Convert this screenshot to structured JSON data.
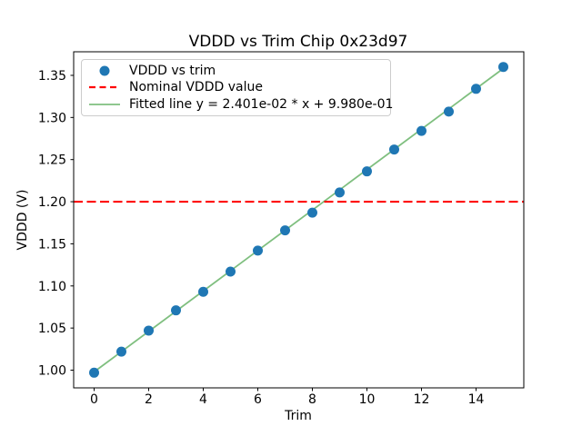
{
  "figure": {
    "title": "VDDD vs Trim Chip 0x23d97"
  },
  "axes": {
    "xlabel": "Trim",
    "ylabel": "VDDD (V)"
  },
  "legend": {
    "items": [
      {
        "label": "VDDD vs trim",
        "marker": "dot"
      },
      {
        "label": "Nominal VDDD value",
        "marker": "dashed-line"
      },
      {
        "label": "Fitted line y = 2.401e-02 * x + 9.980e-01",
        "marker": "solid-line"
      }
    ]
  },
  "chart_data": {
    "type": "scatter",
    "title": "VDDD vs Trim Chip 0x23d97",
    "xlabel": "Trim",
    "ylabel": "VDDD (V)",
    "xlim": [
      -0.75,
      15.75
    ],
    "ylim": [
      0.979,
      1.378
    ],
    "xticks": [
      0,
      2,
      4,
      6,
      8,
      10,
      12,
      14
    ],
    "xticklabels": [
      "0",
      "2",
      "4",
      "6",
      "8",
      "10",
      "12",
      "14"
    ],
    "yticks": [
      1.0,
      1.05,
      1.1,
      1.15,
      1.2,
      1.25,
      1.3,
      1.35
    ],
    "yticklabels": [
      "1.00",
      "1.05",
      "1.10",
      "1.15",
      "1.20",
      "1.25",
      "1.30",
      "1.35"
    ],
    "grid": false,
    "legend_position": "upper left",
    "scatter": {
      "name": "VDDD vs trim",
      "color": "#1f77b4",
      "x": [
        0,
        1,
        2,
        3,
        4,
        5,
        6,
        7,
        8,
        9,
        10,
        11,
        12,
        13,
        14,
        15
      ],
      "y": [
        0.997,
        1.022,
        1.047,
        1.071,
        1.093,
        1.117,
        1.142,
        1.166,
        1.187,
        1.211,
        1.236,
        1.262,
        1.284,
        1.307,
        1.334,
        1.36
      ]
    },
    "nominal_line": {
      "name": "Nominal VDDD value",
      "value": 1.2,
      "color": "#ff0000",
      "style": "dashed"
    },
    "fitted_line": {
      "name": "Fitted line y = 2.401e-02 * x + 9.980e-01",
      "slope": 0.02401,
      "intercept": 0.998,
      "x_range": [
        0,
        15
      ],
      "color": "#7fbf7f",
      "style": "solid"
    }
  }
}
